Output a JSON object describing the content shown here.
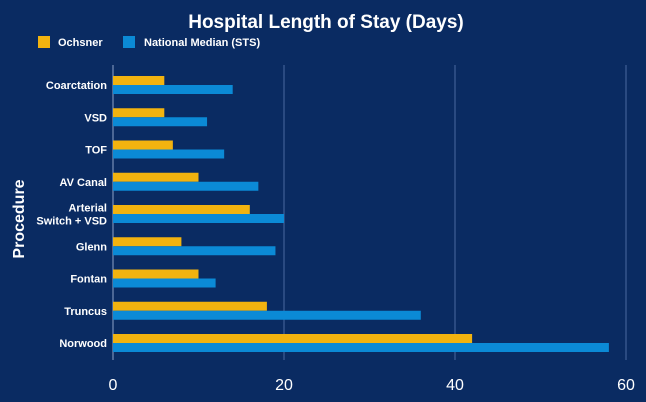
{
  "chart_data": {
    "type": "bar",
    "orientation": "horizontal",
    "title": "Hospital Length of Stay (Days)",
    "xlabel": "",
    "ylabel": "Procedure",
    "categories": [
      "Coarctation",
      "VSD",
      "TOF",
      "AV Canal",
      "Arterial Switch + VSD",
      "Glenn",
      "Fontan",
      "Truncus",
      "Norwood"
    ],
    "category_lines": [
      [
        "Coarctation"
      ],
      [
        "VSD"
      ],
      [
        "TOF"
      ],
      [
        "AV Canal"
      ],
      [
        "Arterial",
        "Switch + VSD"
      ],
      [
        "Glenn"
      ],
      [
        "Fontan"
      ],
      [
        "Truncus"
      ],
      [
        "Norwood"
      ]
    ],
    "series": [
      {
        "name": "Ochsner",
        "color": "#f2b30f",
        "values": [
          6,
          6,
          7,
          10,
          16,
          8,
          10,
          18,
          42
        ]
      },
      {
        "name": "National Median (STS)",
        "color": "#0b8ad6",
        "values": [
          14,
          11,
          13,
          17,
          20,
          19,
          12,
          36,
          58
        ]
      }
    ],
    "xlim": [
      0,
      60
    ],
    "xticks": [
      "0",
      "20",
      "40",
      "60"
    ],
    "grid": true,
    "legend_position": "top-left"
  }
}
